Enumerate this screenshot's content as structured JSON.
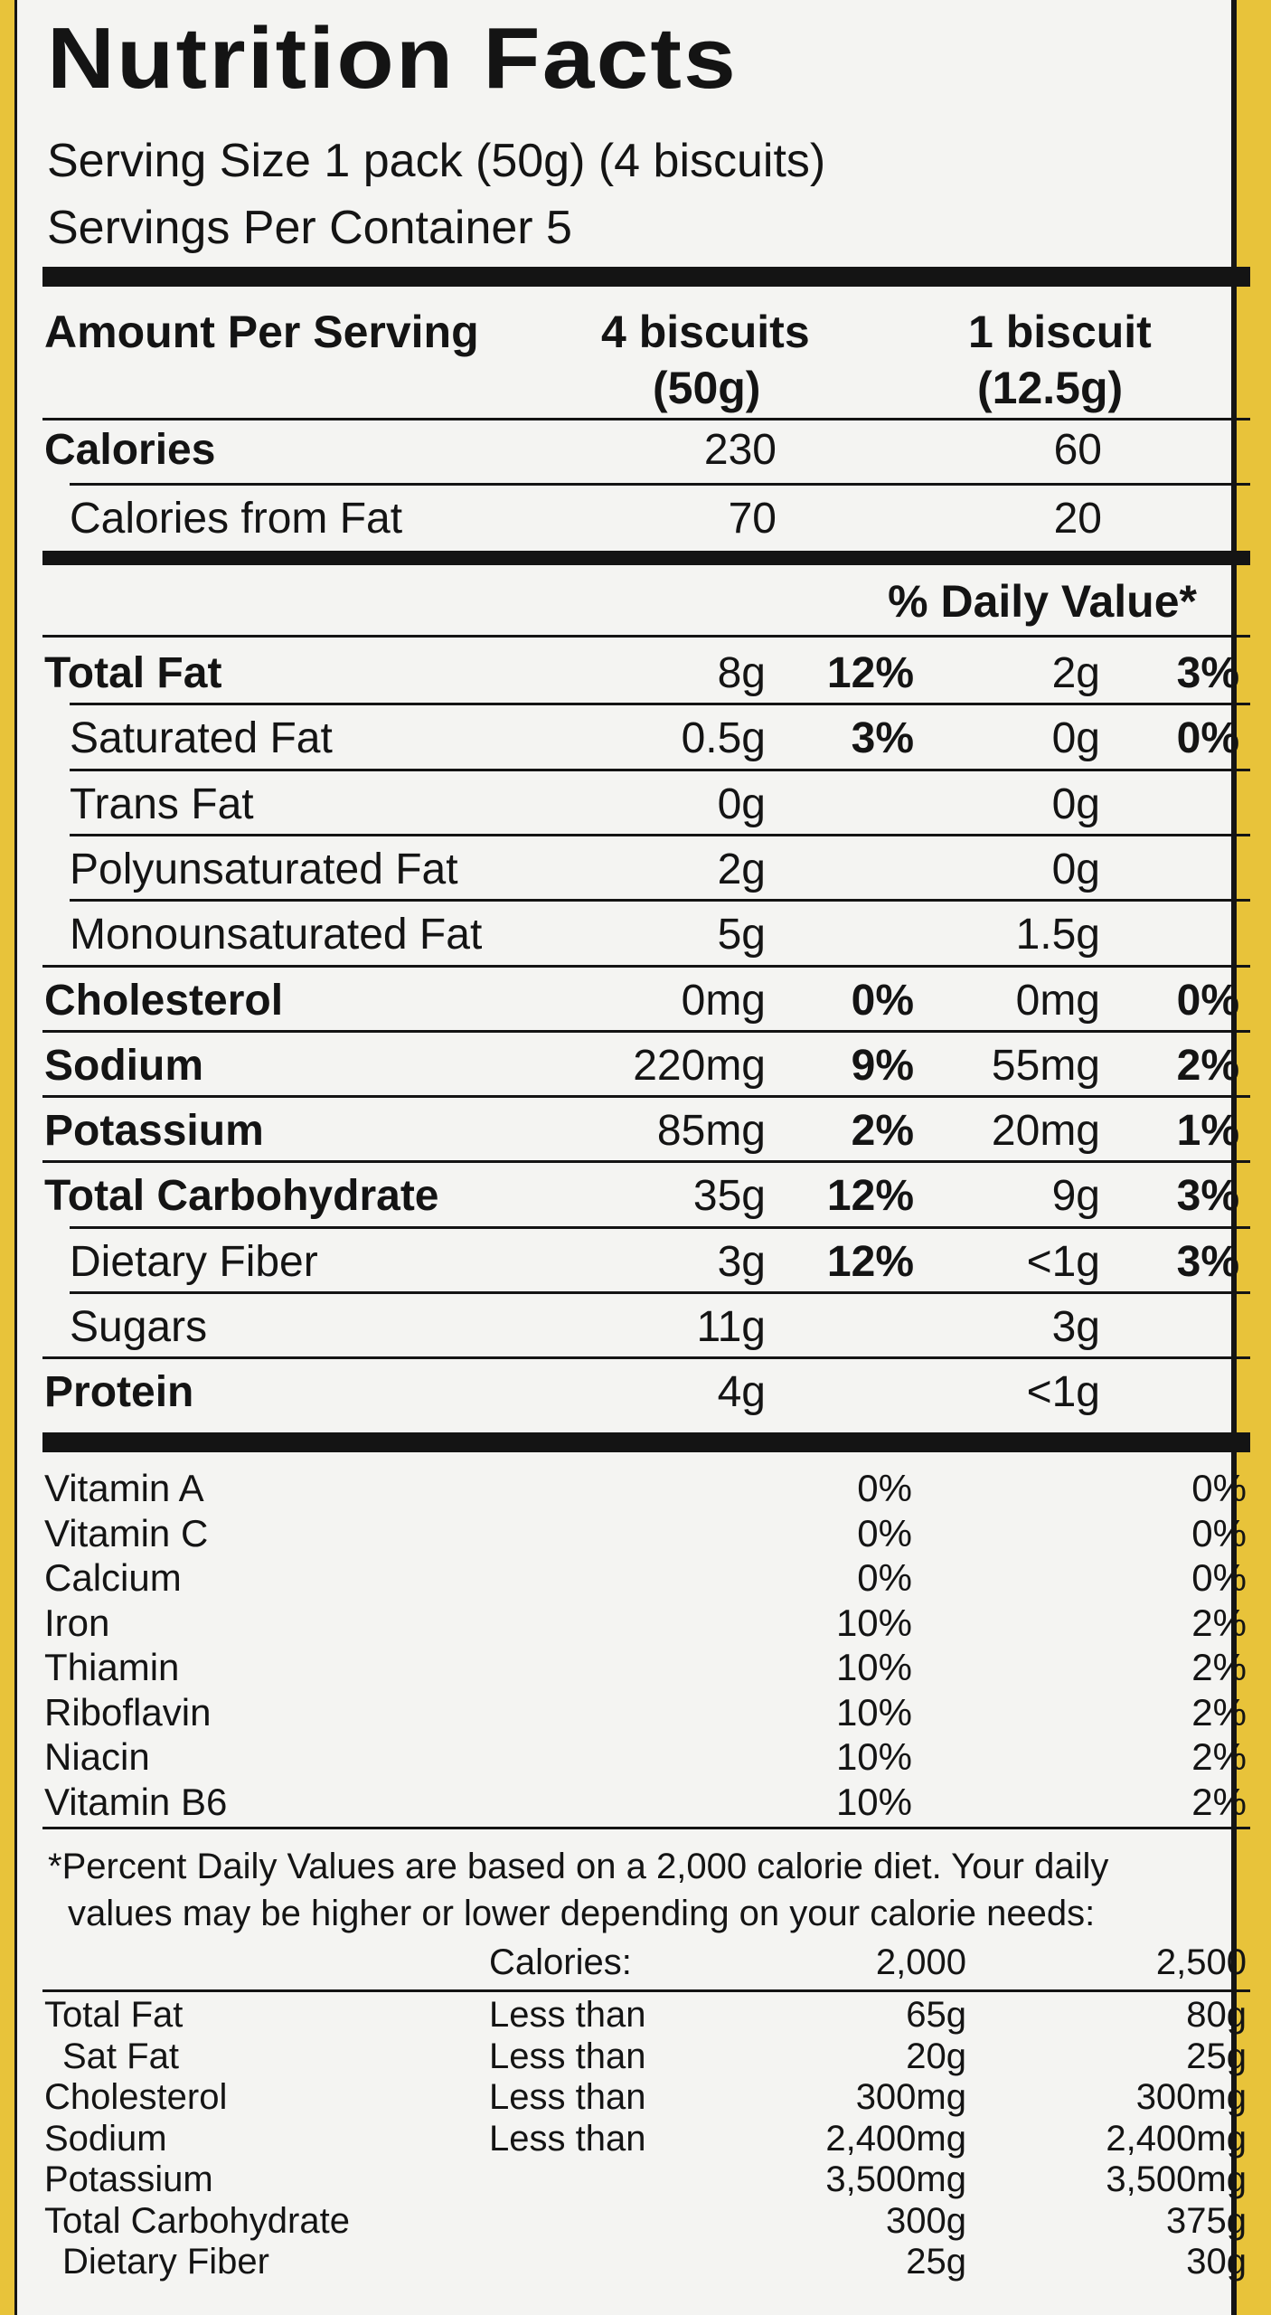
{
  "title": "Nutrition Facts",
  "serving_size": "Serving Size 1 pack (50g) (4 biscuits)",
  "servings_per_container": "Servings Per Container 5",
  "header": {
    "amount_per_serving": "Amount Per Serving",
    "col1_line1": "4 biscuits",
    "col1_line2": "(50g)",
    "col2_line1": "1 biscuit",
    "col2_line2": "(12.5g)"
  },
  "calories": {
    "label": "Calories",
    "v1": "230",
    "v2": "60"
  },
  "calories_from_fat": {
    "label": "Calories from Fat",
    "v1": "70",
    "v2": "20"
  },
  "daily_value_header": "% Daily Value*",
  "nutrients": [
    {
      "label": "Total Fat",
      "bold": true,
      "indent": false,
      "a1": "8g",
      "p1": "12%",
      "a2": "2g",
      "p2": "3%"
    },
    {
      "label": "Saturated Fat",
      "bold": false,
      "indent": true,
      "a1": "0.5g",
      "p1": "3%",
      "a2": "0g",
      "p2": "0%"
    },
    {
      "label": "Trans Fat",
      "bold": false,
      "indent": true,
      "a1": "0g",
      "p1": "",
      "a2": "0g",
      "p2": ""
    },
    {
      "label": "Polyunsaturated Fat",
      "bold": false,
      "indent": true,
      "a1": "2g",
      "p1": "",
      "a2": "0g",
      "p2": ""
    },
    {
      "label": "Monounsaturated Fat",
      "bold": false,
      "indent": true,
      "a1": "5g",
      "p1": "",
      "a2": "1.5g",
      "p2": ""
    },
    {
      "label": "Cholesterol",
      "bold": true,
      "indent": false,
      "a1": "0mg",
      "p1": "0%",
      "a2": "0mg",
      "p2": "0%"
    },
    {
      "label": "Sodium",
      "bold": true,
      "indent": false,
      "a1": "220mg",
      "p1": "9%",
      "a2": "55mg",
      "p2": "2%"
    },
    {
      "label": "Potassium",
      "bold": true,
      "indent": false,
      "a1": "85mg",
      "p1": "2%",
      "a2": "20mg",
      "p2": "1%"
    },
    {
      "label": "Total Carbohydrate",
      "bold": true,
      "indent": false,
      "a1": "35g",
      "p1": "12%",
      "a2": "9g",
      "p2": "3%"
    },
    {
      "label": "Dietary Fiber",
      "bold": false,
      "indent": true,
      "a1": "3g",
      "p1": "12%",
      "a2": "<1g",
      "p2": "3%"
    },
    {
      "label": "Sugars",
      "bold": false,
      "indent": true,
      "a1": "11g",
      "p1": "",
      "a2": "3g",
      "p2": ""
    },
    {
      "label": "Protein",
      "bold": true,
      "indent": false,
      "a1": "4g",
      "p1": "",
      "a2": "<1g",
      "p2": ""
    }
  ],
  "vitamins": [
    {
      "label": "Vitamin A",
      "v1": "0%",
      "v2": "0%"
    },
    {
      "label": "Vitamin C",
      "v1": "0%",
      "v2": "0%"
    },
    {
      "label": "Calcium",
      "v1": "0%",
      "v2": "0%"
    },
    {
      "label": "Iron",
      "v1": "10%",
      "v2": "2%"
    },
    {
      "label": "Thiamin",
      "v1": "10%",
      "v2": "2%"
    },
    {
      "label": "Riboflavin",
      "v1": "10%",
      "v2": "2%"
    },
    {
      "label": "Niacin",
      "v1": "10%",
      "v2": "2%"
    },
    {
      "label": "Vitamin B6",
      "v1": "10%",
      "v2": "2%"
    }
  ],
  "footnote_line1": "*Percent Daily Values are based on a 2,000 calorie diet. Your daily",
  "footnote_line2": "values may be higher or lower depending on your calorie needs:",
  "ref_header": {
    "label": "Calories:",
    "c1": "2,000",
    "c2": "2,500"
  },
  "ref_rows": [
    {
      "label": "Total Fat",
      "qual": "Less than",
      "c1": "65g",
      "c2": "80g"
    },
    {
      "label": "Sat Fat",
      "qual": "Less than",
      "c1": "20g",
      "c2": "25g"
    },
    {
      "label": "Cholesterol",
      "qual": "Less than",
      "c1": "300mg",
      "c2": "300mg"
    },
    {
      "label": "Sodium",
      "qual": "Less than",
      "c1": "2,400mg",
      "c2": "2,400mg"
    },
    {
      "label": "Potassium",
      "qual": "",
      "c1": "3,500mg",
      "c2": "3,500mg"
    },
    {
      "label": "Total Carbohydrate",
      "qual": "",
      "c1": "300g",
      "c2": "375g"
    },
    {
      "label": "Dietary Fiber",
      "qual": "",
      "c1": "25g",
      "c2": "30g"
    }
  ],
  "colors": {
    "background": "#e8c33a",
    "panel": "#f4f4f2",
    "ink": "#141414"
  }
}
